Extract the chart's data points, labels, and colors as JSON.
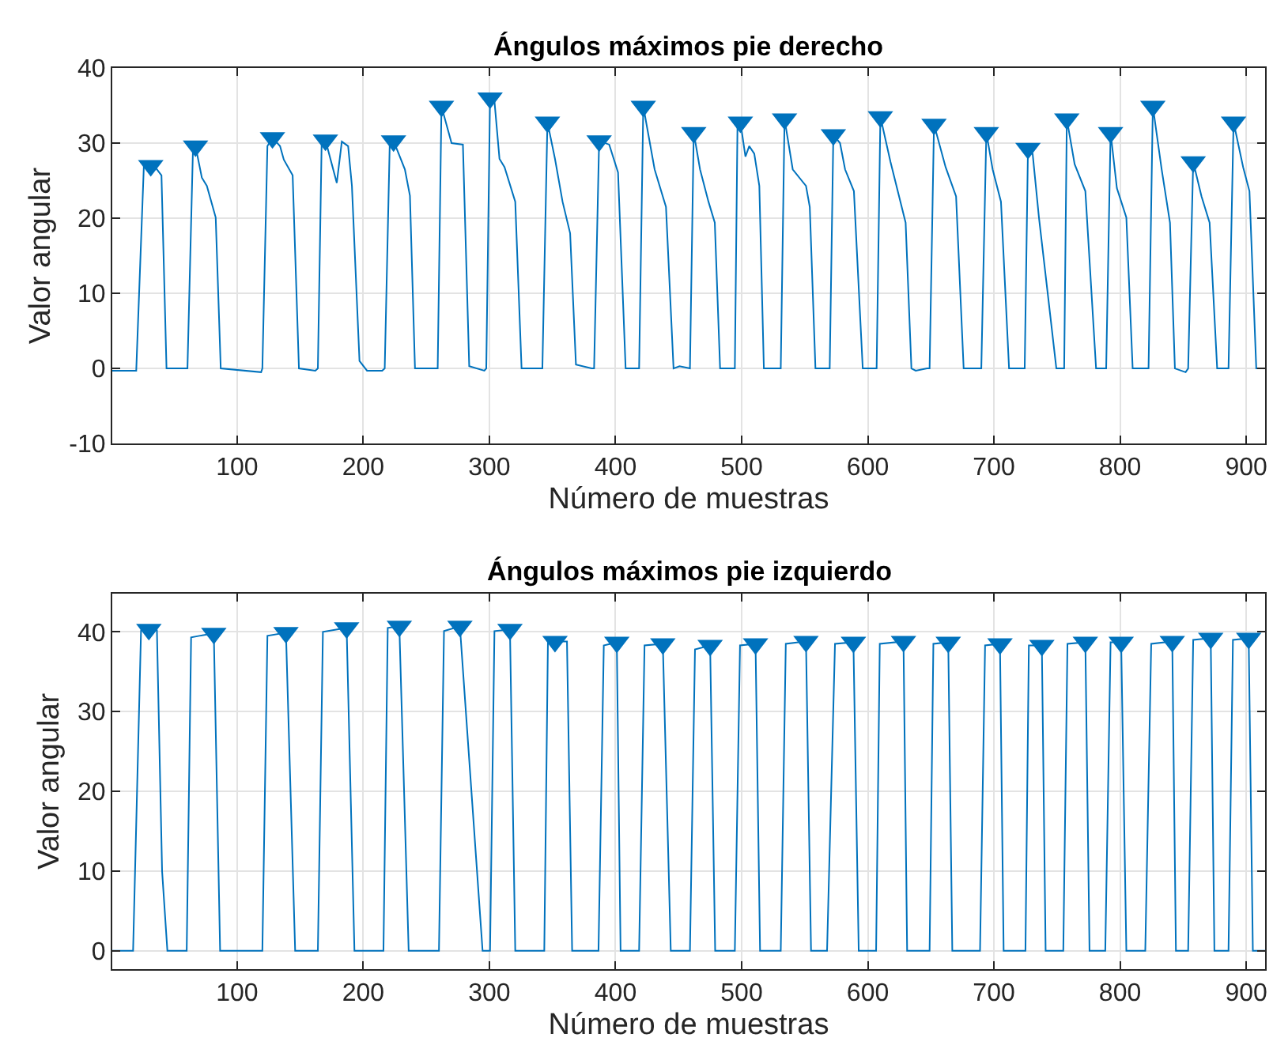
{
  "chart_data": [
    {
      "type": "line",
      "title": "Ángulos máximos pie derecho",
      "xlabel": "Número de muestras",
      "ylabel": "Valor angular",
      "xlim": [
        1,
        915
      ],
      "ylim": [
        -10,
        40
      ],
      "xticks": [
        100,
        200,
        300,
        400,
        500,
        600,
        700,
        800,
        900
      ],
      "yticks": [
        -10,
        0,
        10,
        20,
        30,
        40
      ],
      "grid": true,
      "series": [
        {
          "color": "#0072bd",
          "marker": "none",
          "x": [
            1,
            20,
            26,
            31.5,
            35,
            40,
            44,
            59,
            60.6,
            65,
            67,
            72,
            76,
            83,
            87,
            119,
            120,
            124,
            128,
            134,
            137,
            144,
            149,
            162,
            164,
            167,
            170,
            179,
            183,
            188,
            191,
            197,
            203,
            215,
            217,
            221,
            224,
            233,
            237,
            241,
            257,
            259,
            262,
            270,
            279,
            284,
            296,
            297.5,
            300.5,
            304,
            308,
            312,
            320.5,
            325.5,
            340.6,
            342,
            346,
            352,
            358,
            364,
            368.6,
            381,
            383,
            387,
            395,
            402,
            408,
            416.6,
            418.7,
            422,
            431,
            440,
            446,
            450.7,
            459,
            462,
            467,
            473.7,
            478.7,
            482.9,
            493,
            494.6,
            496.7,
            499,
            503,
            506,
            510,
            514,
            517.6,
            528,
            531,
            534,
            540.5,
            551,
            554,
            558.5,
            567.7,
            569.8,
            572.7,
            578,
            582,
            589,
            596,
            605,
            607,
            610,
            618,
            630,
            634.6,
            638,
            647,
            649,
            652.5,
            661.7,
            670,
            676,
            689,
            690,
            694,
            699,
            705.6,
            712,
            722,
            724.4,
            727,
            730.7,
            735.7,
            743,
            749.5,
            753.7,
            755.7,
            757.8,
            764,
            772.5,
            781,
            787,
            789,
            792.5,
            797.5,
            805,
            810,
            818,
            822.6,
            826,
            833,
            839.6,
            843.5,
            852,
            854,
            858,
            864.6,
            871,
            877,
            884.5,
            886,
            890,
            897.6,
            902.6,
            908,
            915
          ],
          "values": [
            -0.3,
            -0.3,
            26.8,
            27,
            26.8,
            25.7,
            0,
            0,
            0,
            29.4,
            29.6,
            25.4,
            24.3,
            20.1,
            0,
            -0.5,
            0,
            29.6,
            30.7,
            29.6,
            27.8,
            25.7,
            0,
            -0.3,
            0,
            30,
            30.4,
            24.7,
            30.2,
            29.6,
            24.3,
            1,
            -0.3,
            -0.3,
            0,
            30,
            30.3,
            26.5,
            23,
            0,
            0,
            0,
            34.9,
            30,
            29.8,
            0.3,
            -0.3,
            0,
            36,
            35.6,
            27.9,
            26.8,
            22.2,
            0,
            0,
            0,
            32.8,
            27.9,
            22.2,
            18,
            0.5,
            0,
            0,
            30.3,
            29.8,
            26.1,
            0,
            0,
            0,
            34.9,
            26.5,
            21.5,
            0,
            0.3,
            0,
            31.4,
            26.5,
            22.2,
            19.4,
            0,
            0,
            0,
            32.5,
            32.8,
            28.2,
            29.6,
            28.6,
            24.3,
            0,
            0,
            0,
            33.2,
            26.5,
            24.3,
            21.5,
            0,
            0,
            0,
            31.1,
            30,
            26.5,
            23.6,
            0,
            0,
            0,
            33.5,
            27.5,
            19.4,
            0,
            -0.3,
            0,
            0,
            32.5,
            26.8,
            22.9,
            0,
            0,
            0,
            31.4,
            26.5,
            22.2,
            0,
            0,
            0,
            29.3,
            28.6,
            20.1,
            9.5,
            0,
            0,
            0,
            33.2,
            27.2,
            23.6,
            0,
            0,
            0,
            31.4,
            24,
            20.1,
            0,
            0,
            0,
            34.9,
            26.5,
            19.4,
            0,
            -0.5,
            0,
            27.5,
            22.9,
            19.4,
            0,
            0,
            0,
            32.8,
            26.8,
            23.6,
            0,
            0
          ]
        },
        {
          "type": "scatter",
          "color": "#0072bd",
          "marker": "triangle",
          "x": [
            31.5,
            67,
            128,
            170,
            224,
            262,
            300.5,
            346,
            387,
            422,
            462,
            499,
            534,
            572.7,
            610,
            652.5,
            694,
            727,
            757.8,
            792.5,
            826,
            858,
            890
          ],
          "values": [
            27,
            29.6,
            30.7,
            30.4,
            30.3,
            34.9,
            36,
            32.8,
            30.3,
            34.9,
            31.4,
            32.8,
            33.2,
            31.1,
            33.5,
            32.5,
            31.4,
            29.3,
            33.2,
            31.4,
            34.9,
            27.5,
            32.8
          ]
        }
      ]
    },
    {
      "type": "line",
      "title": "Ángulos máximos pie izquierdo",
      "xlabel": "Número de muestras",
      "ylabel": "Valor angular",
      "xlim": [
        1,
        915
      ],
      "ylim": [
        -2.3,
        44.8
      ],
      "xticks": [
        100,
        200,
        300,
        400,
        500,
        600,
        700,
        800,
        900
      ],
      "yticks": [
        0,
        10,
        20,
        30,
        40
      ],
      "grid": true,
      "series": [
        {
          "color": "#0072bd",
          "marker": "none",
          "x": [
            1,
            17.5,
            23.8,
            30,
            36.4,
            40.5,
            44.7,
            58,
            60,
            63.5,
            70,
            81.5,
            86.5,
            118,
            120,
            124,
            138.7,
            146,
            162,
            164,
            168,
            186.8,
            193,
            214,
            216,
            219.4,
            228.6,
            236,
            258,
            260,
            264,
            276.6,
            294.6,
            298.8,
            300.5,
            304,
            316.3,
            320.5,
            341.4,
            343.5,
            346.4,
            352,
            361.5,
            365.6,
            385.3,
            386.5,
            390.7,
            401,
            404,
            416.6,
            418.7,
            423,
            437.5,
            443.8,
            456,
            459,
            463,
            475,
            479,
            492.5,
            494.6,
            498.7,
            511,
            514.6,
            529,
            531,
            535,
            551,
            555,
            565.6,
            567.7,
            574,
            588.6,
            592.8,
            605,
            606.6,
            609.5,
            628.3,
            631.2,
            647,
            649,
            652,
            663.8,
            667,
            687.6,
            689,
            693,
            704.8,
            707.7,
            723.6,
            725,
            727.7,
            738,
            741,
            753.7,
            755,
            758.3,
            772.5,
            775.8,
            787,
            788.3,
            792.5,
            800.9,
            805,
            818.4,
            820,
            824.7,
            841.4,
            844.3,
            852.7,
            854,
            858,
            871.9,
            874.8,
            884.5,
            886,
            889.5,
            902,
            905.3,
            915
          ],
          "values": [
            0,
            0,
            40.2,
            40.3,
            40.2,
            10,
            0,
            0,
            0,
            39.3,
            39.5,
            39.8,
            0,
            0,
            0,
            39.5,
            39.9,
            0,
            0,
            0,
            40,
            40.5,
            0,
            0,
            0,
            40.5,
            40.7,
            0,
            0,
            0,
            40.1,
            40.7,
            0,
            0,
            0,
            40.1,
            40.3,
            0,
            0,
            0,
            38.7,
            38.8,
            38.8,
            0,
            0,
            0,
            38.3,
            38.7,
            0,
            0,
            0,
            38.3,
            38.5,
            0,
            0,
            0,
            37.8,
            38.3,
            0,
            0,
            0,
            38.3,
            38.5,
            0,
            0,
            0,
            38.5,
            38.8,
            0,
            0,
            0,
            38.5,
            38.7,
            0,
            0,
            0,
            38.5,
            38.8,
            0,
            0,
            0,
            38.5,
            38.7,
            0,
            0,
            0,
            38.3,
            38.5,
            0,
            0,
            0,
            38.3,
            38.3,
            0,
            0,
            0,
            38.5,
            38.7,
            0,
            0,
            0,
            38.7,
            38.7,
            0,
            0,
            0,
            38.5,
            38.8,
            0,
            0,
            0,
            39,
            39.2,
            0,
            0,
            0,
            39,
            39.2,
            0,
            0
          ]
        },
        {
          "type": "scatter",
          "color": "#0072bd",
          "marker": "triangle",
          "x": [
            30,
            81.5,
            138.7,
            186.8,
            228.6,
            276.6,
            316.3,
            352,
            401,
            437.5,
            475,
            511,
            551,
            588.6,
            628.3,
            663.8,
            704.8,
            738,
            772.5,
            800.9,
            841.4,
            871.9,
            902
          ],
          "values": [
            40.3,
            39.8,
            39.9,
            40.5,
            40.7,
            40.7,
            40.3,
            38.8,
            38.7,
            38.5,
            38.3,
            38.5,
            38.8,
            38.7,
            38.8,
            38.7,
            38.5,
            38.3,
            38.7,
            38.7,
            38.8,
            39.2,
            39.2
          ]
        }
      ]
    }
  ]
}
